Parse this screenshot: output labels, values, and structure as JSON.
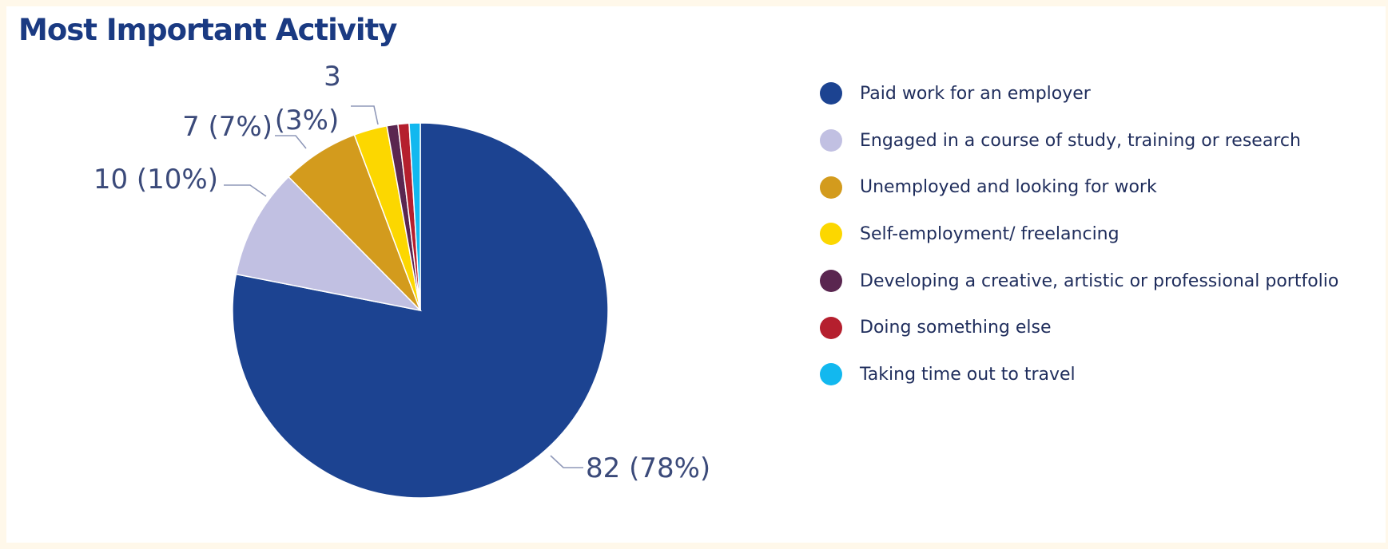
{
  "chart_data": {
    "type": "pie",
    "title": "Most Important Activity",
    "start_angle_deg": 0,
    "direction": "clockwise",
    "slices": [
      {
        "label": "Paid work for an employer",
        "value": 82,
        "percent": 78,
        "color": "#1c4391",
        "data_label": "82 (78%)"
      },
      {
        "label": "Engaged in a course of study, training or research",
        "value": 10,
        "percent": 10,
        "color": "#c1c0e2",
        "data_label": "10 (10%)"
      },
      {
        "label": "Unemployed and looking for work",
        "value": 7,
        "percent": 7,
        "color": "#d39b1d",
        "data_label": "7 (7%)"
      },
      {
        "label": "Self-employment/ freelancing",
        "value": 3,
        "percent": 3,
        "color": "#fcd700",
        "data_label": "3 (3%)"
      },
      {
        "label": "Developing a creative, artistic or professional portfolio",
        "value": 1,
        "percent": 1,
        "color": "#5a2650",
        "data_label": ""
      },
      {
        "label": "Doing something else",
        "value": 1,
        "percent": 1,
        "color": "#b51f2e",
        "data_label": ""
      },
      {
        "label": "Taking time out to travel",
        "value": 1,
        "percent": 1,
        "color": "#12b8ef",
        "data_label": ""
      }
    ],
    "legend_position": "right"
  }
}
